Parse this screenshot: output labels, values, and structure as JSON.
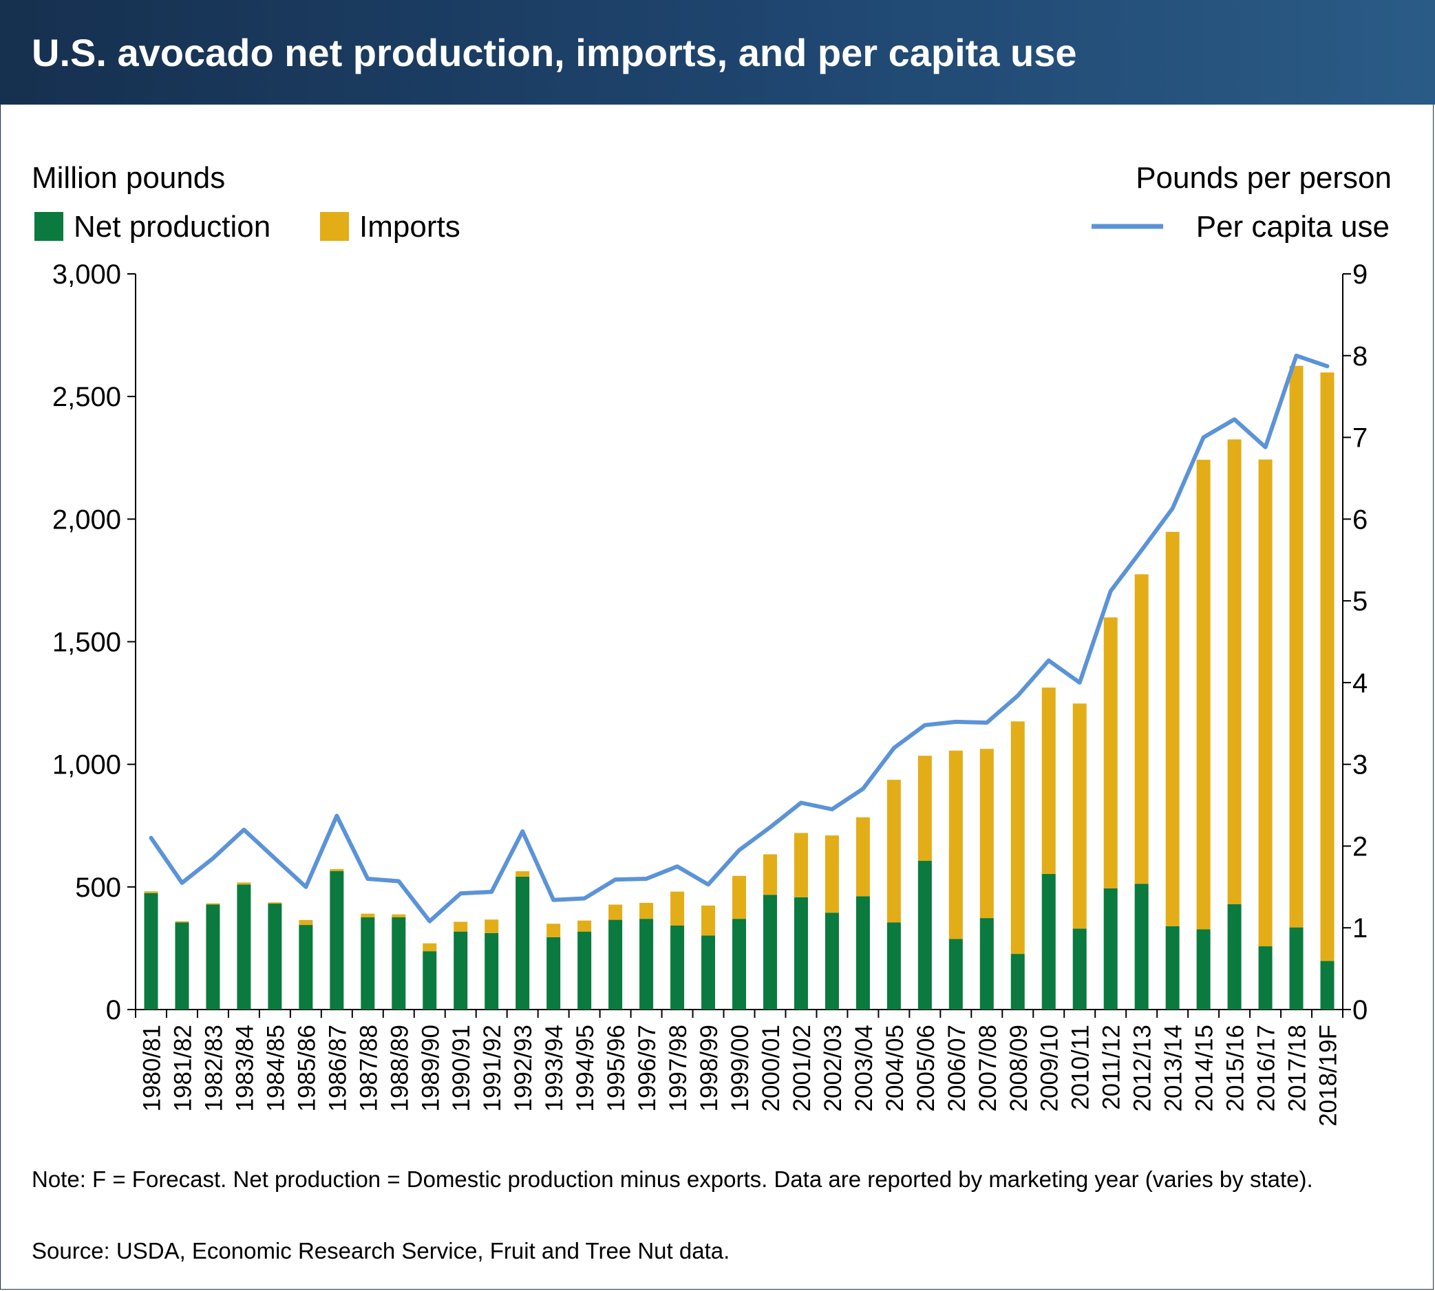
{
  "title": "U.S. avocado net production, imports, and per capita use",
  "left_axis_title": "Million pounds",
  "right_axis_title": "Pounds per person",
  "note": "Note:  F = Forecast. Net production = Domestic production minus exports. Data are reported by marketing year (varies by state).",
  "source": "Source: USDA, Economic Research Service, Fruit and Tree Nut data.",
  "colors": {
    "net_production": "#0a7a3e",
    "imports": "#e3ad18",
    "per_capita_use": "#5b93d8",
    "banner": "#1f4670"
  },
  "chart_data": {
    "type": "bar",
    "stacked": true,
    "categories": [
      "1980/81",
      "1981/82",
      "1982/83",
      "1983/84",
      "1984/85",
      "1985/86",
      "1986/87",
      "1987/88",
      "1988/89",
      "1989/90",
      "1990/91",
      "1991/92",
      "1992/93",
      "1993/94",
      "1994/95",
      "1995/96",
      "1996/97",
      "1997/98",
      "1998/99",
      "1999/00",
      "2000/01",
      "2001/02",
      "2002/03",
      "2003/04",
      "2004/05",
      "2005/06",
      "2006/07",
      "2007/08",
      "2008/09",
      "2009/10",
      "2010/11",
      "2011/12",
      "2012/13",
      "2013/14",
      "2014/15",
      "2015/16",
      "2016/17",
      "2017/18",
      "2018/19F"
    ],
    "series": [
      {
        "name": "Net production",
        "axis": "left",
        "values": [
          475,
          355,
          428,
          510,
          432,
          345,
          565,
          376,
          376,
          238,
          318,
          312,
          542,
          295,
          318,
          366,
          370,
          343,
          302,
          370,
          468,
          458,
          395,
          462,
          355,
          607,
          288,
          373,
          227,
          553,
          330,
          494,
          513,
          340,
          327,
          430,
          258,
          335,
          198
        ]
      },
      {
        "name": "Imports",
        "axis": "left",
        "values": [
          7,
          5,
          5,
          8,
          5,
          20,
          8,
          15,
          12,
          32,
          40,
          55,
          22,
          55,
          45,
          62,
          65,
          138,
          122,
          175,
          165,
          262,
          315,
          322,
          582,
          428,
          768,
          690,
          948,
          760,
          918,
          1105,
          1262,
          1608,
          1915,
          1895,
          1985,
          2290,
          2400
        ]
      },
      {
        "name": "Per capita use",
        "axis": "right",
        "type": "line",
        "values": [
          2.1,
          1.55,
          1.85,
          2.2,
          1.85,
          1.5,
          2.37,
          1.6,
          1.57,
          1.08,
          1.42,
          1.44,
          2.18,
          1.34,
          1.36,
          1.59,
          1.6,
          1.75,
          1.53,
          1.95,
          2.23,
          2.53,
          2.45,
          2.7,
          3.2,
          3.48,
          3.52,
          3.51,
          3.84,
          4.27,
          4.0,
          5.12,
          5.62,
          6.13,
          7.0,
          7.22,
          6.88,
          8.0,
          7.87
        ]
      }
    ],
    "y_left": {
      "label": "Million pounds",
      "range": [
        0,
        3000
      ],
      "ticks": [
        0,
        500,
        1000,
        1500,
        2000,
        2500,
        3000
      ],
      "tick_labels": [
        "0",
        "500",
        "1,000",
        "1,500",
        "2,000",
        "2,500",
        "3,000"
      ]
    },
    "y_right": {
      "label": "Pounds per person",
      "range": [
        0,
        9
      ],
      "ticks": [
        0,
        1,
        2,
        3,
        4,
        5,
        6,
        7,
        8,
        9
      ],
      "tick_labels": [
        "0",
        "1",
        "2",
        "3",
        "4",
        "5",
        "6",
        "7",
        "8",
        "9"
      ]
    },
    "legend": {
      "placement": "top",
      "entries": [
        "Net production",
        "Imports",
        "Per capita use"
      ]
    },
    "grid": false
  }
}
